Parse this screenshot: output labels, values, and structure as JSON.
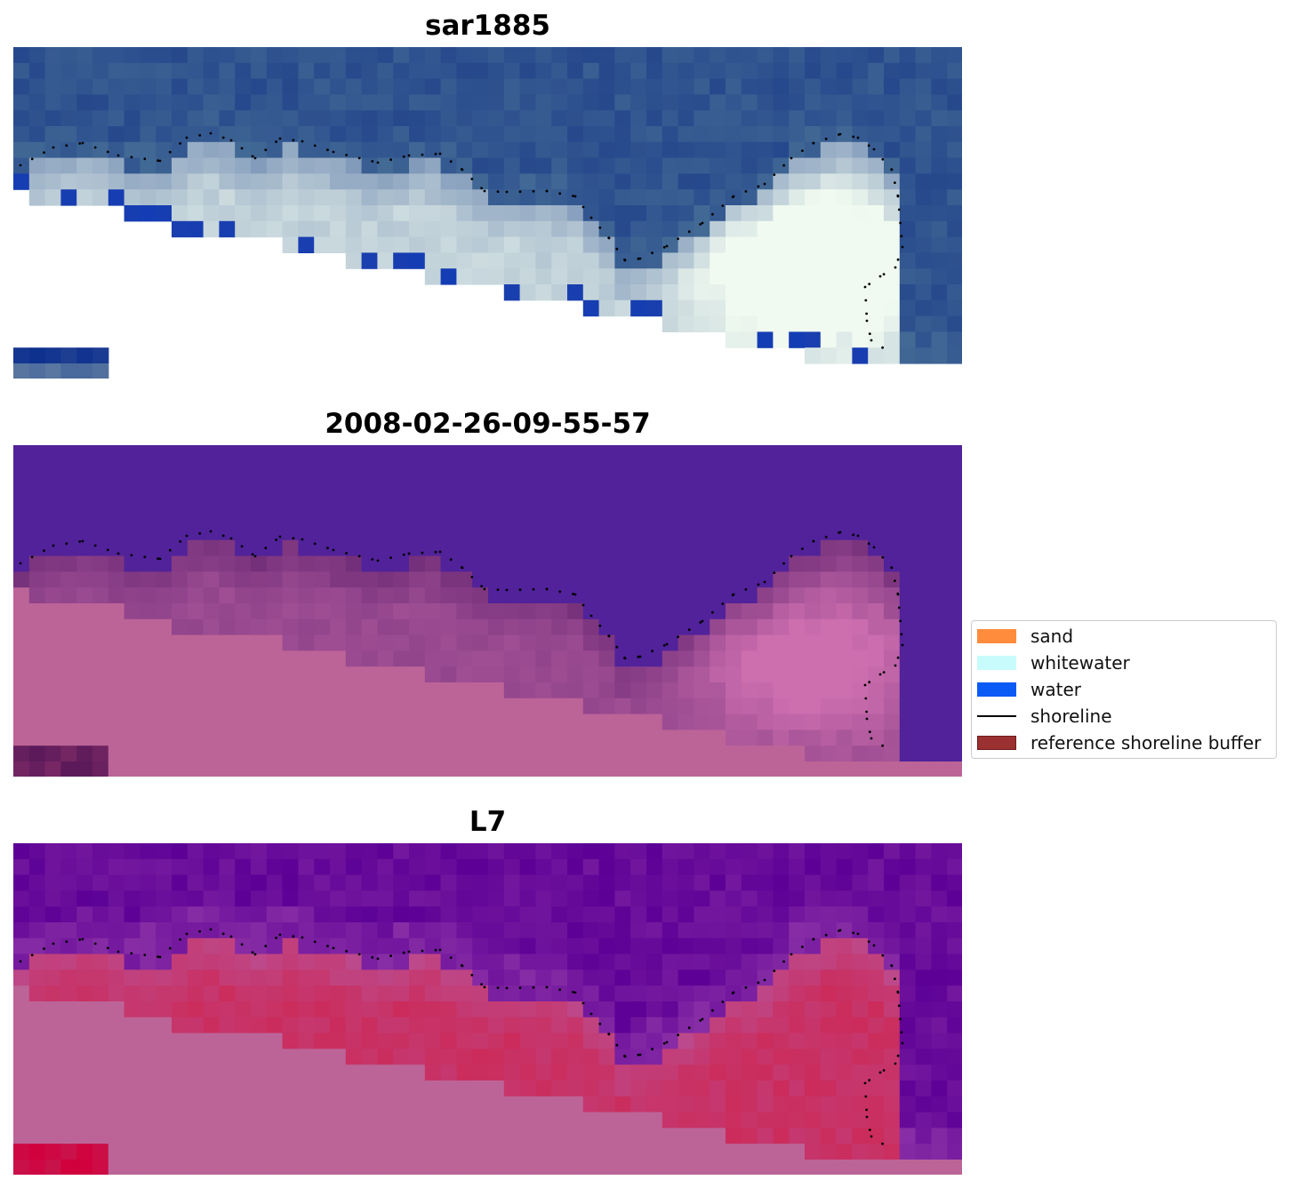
{
  "panels": [
    {
      "title": "sar1885"
    },
    {
      "title": "2008-02-26-09-55-57"
    },
    {
      "title": "L7"
    }
  ],
  "legend": {
    "items": [
      {
        "label": "sand",
        "kind": "patch",
        "color": "#ff8c3c"
      },
      {
        "label": "whitewater",
        "kind": "patch",
        "color": "#c8fcfc"
      },
      {
        "label": "water",
        "kind": "patch",
        "color": "#0a5af5"
      },
      {
        "label": "shoreline",
        "kind": "line",
        "color": "#000000"
      },
      {
        "label": "reference shoreline buffer",
        "kind": "patch",
        "color": "#9b3030",
        "edge": "#6e1a1a"
      }
    ]
  },
  "colors": {
    "sar_deep": "#2c4f8f",
    "sar_foam": "#b8cde0",
    "class_water": "#51229a",
    "class_land": "#bc6497",
    "class_buffer": "#7e3b84",
    "ndwi_water": "#6a14a0",
    "ndwi_land": "#c84a7a"
  }
}
